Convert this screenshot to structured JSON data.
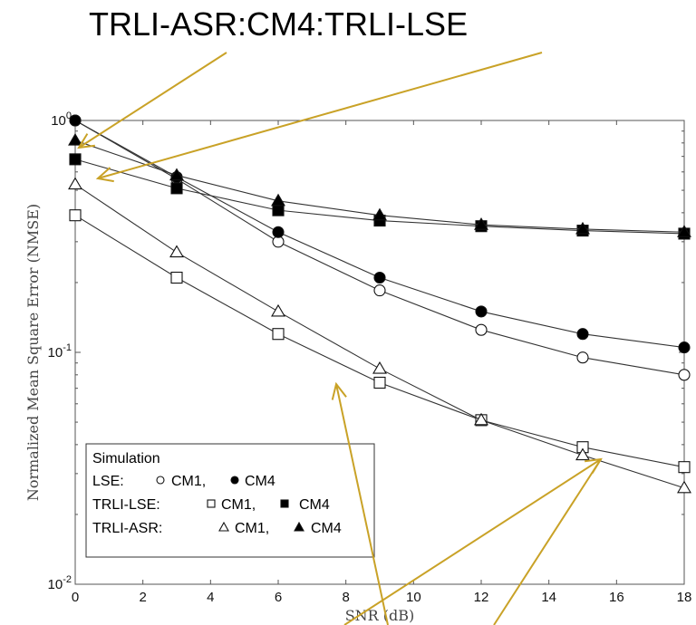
{
  "annotation_top": "TRLI-ASR:CM4:TRLI-LSE",
  "colors": {
    "arrow": "#c9a227",
    "line": "#333333"
  },
  "chart_data": {
    "type": "line",
    "xlabel": "SNR (dB)",
    "ylabel": "Normalized Mean Square Error (NMSE)",
    "yscale": "log",
    "xlim": [
      0,
      18
    ],
    "ylim": [
      0.01,
      1
    ],
    "xticks": [
      0,
      2,
      4,
      6,
      8,
      10,
      12,
      14,
      16,
      18
    ],
    "yticks": [
      {
        "value": 1,
        "label": "10^0"
      },
      {
        "value": 0.1,
        "label": "10^-1"
      },
      {
        "value": 0.01,
        "label": "10^-2"
      }
    ],
    "x": [
      0,
      3,
      6,
      9,
      12,
      15,
      18
    ],
    "series": [
      {
        "name": "LSE CM1",
        "marker": "circle-open",
        "values": [
          1.0,
          0.56,
          0.3,
          0.185,
          0.125,
          0.095,
          0.08
        ]
      },
      {
        "name": "LSE CM4",
        "marker": "circle-filled",
        "values": [
          1.0,
          0.57,
          0.33,
          0.21,
          0.15,
          0.12,
          0.105
        ]
      },
      {
        "name": "TRLI-LSE CM1",
        "marker": "square-open",
        "values": [
          0.39,
          0.21,
          0.12,
          0.074,
          0.051,
          0.039,
          0.032
        ]
      },
      {
        "name": "TRLI-LSE CM4",
        "marker": "square-filled",
        "values": [
          0.68,
          0.51,
          0.41,
          0.37,
          0.35,
          0.335,
          0.325
        ]
      },
      {
        "name": "TRLI-ASR CM1",
        "marker": "triangle-open",
        "values": [
          0.53,
          0.27,
          0.15,
          0.085,
          0.051,
          0.036,
          0.026
        ]
      },
      {
        "name": "TRLI-ASR CM4",
        "marker": "triangle-filled",
        "values": [
          0.82,
          0.58,
          0.45,
          0.39,
          0.355,
          0.34,
          0.33
        ]
      }
    ],
    "legend": {
      "title": "Simulation",
      "placement": "bottom-left",
      "rows": [
        {
          "label": "LSE:",
          "cm1": "CM1,",
          "cm4": "CM4",
          "m1": "circle-open",
          "m4": "circle-filled"
        },
        {
          "label": "TRLI-LSE:",
          "cm1": "CM1,",
          "cm4": "CM4",
          "m1": "square-open",
          "m4": "square-filled"
        },
        {
          "label": "TRLI-ASR:",
          "cm1": "CM1,",
          "cm4": "CM4",
          "m1": "triangle-open",
          "m4": "triangle-filled"
        }
      ]
    }
  }
}
